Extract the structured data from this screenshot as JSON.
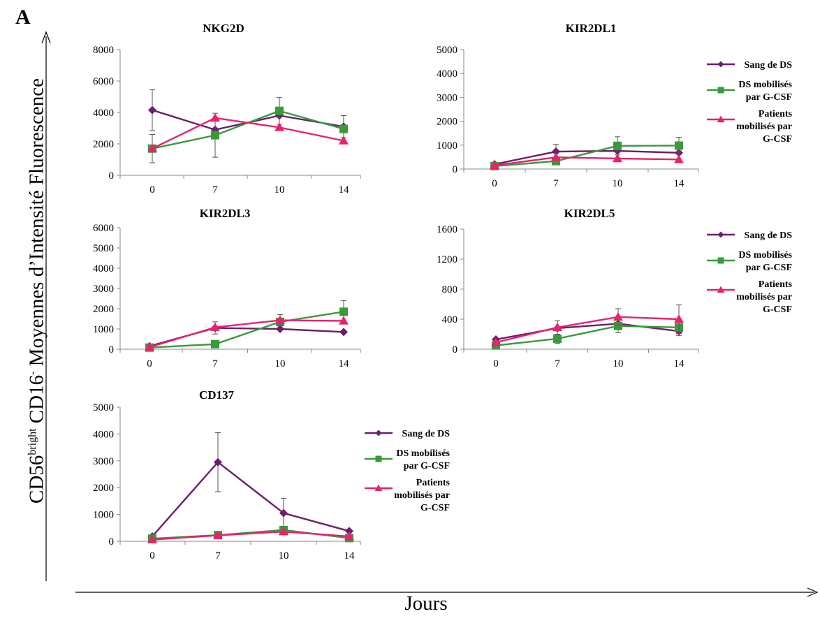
{
  "figure": {
    "panel_label": "A",
    "y_label": {
      "prefix": "CD56",
      "sup1": "bright",
      "mid": " CD16",
      "sup2": "-",
      "suffix": " Moyennes d’Intensité Fluorescence"
    },
    "x_label": "Jours"
  },
  "legend": {
    "items": [
      {
        "label": [
          "Sang de DS"
        ],
        "color": "#6b1f6b",
        "marker": "diamond"
      },
      {
        "label": [
          "DS mobilisés",
          "par G-CSF"
        ],
        "color": "#3a9a3a",
        "marker": "square"
      },
      {
        "label": [
          "Patients",
          "mobilisés par",
          "G-CSF"
        ],
        "color": "#e8226e",
        "marker": "triangle"
      }
    ]
  },
  "chart_data": [
    {
      "type": "line",
      "title": "NKG2D",
      "categories": [
        "0",
        "7",
        "10",
        "14"
      ],
      "ylim": [
        0,
        8000
      ],
      "yticks": [
        0,
        2000,
        4000,
        6000,
        8000
      ],
      "legend": false,
      "series": [
        {
          "name": "Sang de DS",
          "values": [
            4150,
            2900,
            3800,
            3100
          ],
          "err": [
            1300,
            0,
            0,
            700
          ]
        },
        {
          "name": "DS mobilisés par G-CSF",
          "values": [
            1700,
            2550,
            4100,
            2950
          ],
          "err": [
            0,
            1400,
            850,
            0
          ]
        },
        {
          "name": "Patients mobilisés par G-CSF",
          "values": [
            1700,
            3650,
            3050,
            2200
          ],
          "err": [
            900,
            0,
            0,
            0
          ]
        }
      ]
    },
    {
      "type": "line",
      "title": "KIR2DL1",
      "categories": [
        "0",
        "7",
        "10",
        "14"
      ],
      "ylim": [
        0,
        5000
      ],
      "yticks": [
        0,
        1000,
        2000,
        3000,
        4000,
        5000
      ],
      "legend": true,
      "series": [
        {
          "name": "Sang de DS",
          "values": [
            200,
            730,
            760,
            680
          ],
          "err": [
            0,
            300,
            0,
            0
          ]
        },
        {
          "name": "DS mobilisés par G-CSF",
          "values": [
            120,
            330,
            970,
            980
          ],
          "err": [
            0,
            0,
            380,
            350
          ]
        },
        {
          "name": "Patients mobilisés par G-CSF",
          "values": [
            150,
            490,
            440,
            400
          ],
          "err": [
            0,
            0,
            0,
            0
          ]
        }
      ]
    },
    {
      "type": "line",
      "title": "KIR2DL3",
      "categories": [
        "0",
        "7",
        "10",
        "14"
      ],
      "ylim": [
        0,
        6000
      ],
      "yticks": [
        0,
        1000,
        2000,
        3000,
        4000,
        5000,
        6000
      ],
      "legend": false,
      "series": [
        {
          "name": "Sang de DS",
          "values": [
            150,
            1050,
            1000,
            850
          ],
          "err": [
            0,
            300,
            0,
            0
          ]
        },
        {
          "name": "DS mobilisés par G-CSF",
          "values": [
            80,
            250,
            1350,
            1850
          ],
          "err": [
            0,
            0,
            0,
            550
          ]
        },
        {
          "name": "Patients mobilisés par G-CSF",
          "values": [
            100,
            1080,
            1430,
            1400
          ],
          "err": [
            0,
            0,
            280,
            0
          ]
        }
      ]
    },
    {
      "type": "line",
      "title": "KIR2DL5",
      "categories": [
        "0",
        "7",
        "10",
        "14"
      ],
      "ylim": [
        0,
        1600
      ],
      "yticks": [
        0,
        400,
        800,
        1200,
        1600
      ],
      "legend": true,
      "series": [
        {
          "name": "Sang de DS",
          "values": [
            130,
            280,
            340,
            240
          ],
          "err": [
            0,
            0,
            0,
            60
          ]
        },
        {
          "name": "DS mobilisés par G-CSF",
          "values": [
            50,
            140,
            310,
            290
          ],
          "err": [
            0,
            60,
            90,
            0
          ]
        },
        {
          "name": "Patients mobilisés par G-CSF",
          "values": [
            90,
            290,
            430,
            400
          ],
          "err": [
            0,
            90,
            110,
            190
          ]
        }
      ]
    },
    {
      "type": "line",
      "title": "CD137",
      "categories": [
        "0",
        "7",
        "10",
        "14"
      ],
      "ylim": [
        0,
        5000
      ],
      "yticks": [
        0,
        1000,
        2000,
        3000,
        4000,
        5000
      ],
      "legend": true,
      "series": [
        {
          "name": "Sang de DS",
          "values": [
            180,
            2950,
            1050,
            380
          ],
          "err": [
            0,
            1100,
            550,
            0
          ]
        },
        {
          "name": "DS mobilisés par G-CSF",
          "values": [
            100,
            230,
            420,
            120
          ],
          "err": [
            0,
            0,
            0,
            0
          ]
        },
        {
          "name": "Patients mobilisés par G-CSF",
          "values": [
            60,
            220,
            360,
            180
          ],
          "err": [
            0,
            0,
            0,
            0
          ]
        }
      ]
    }
  ]
}
